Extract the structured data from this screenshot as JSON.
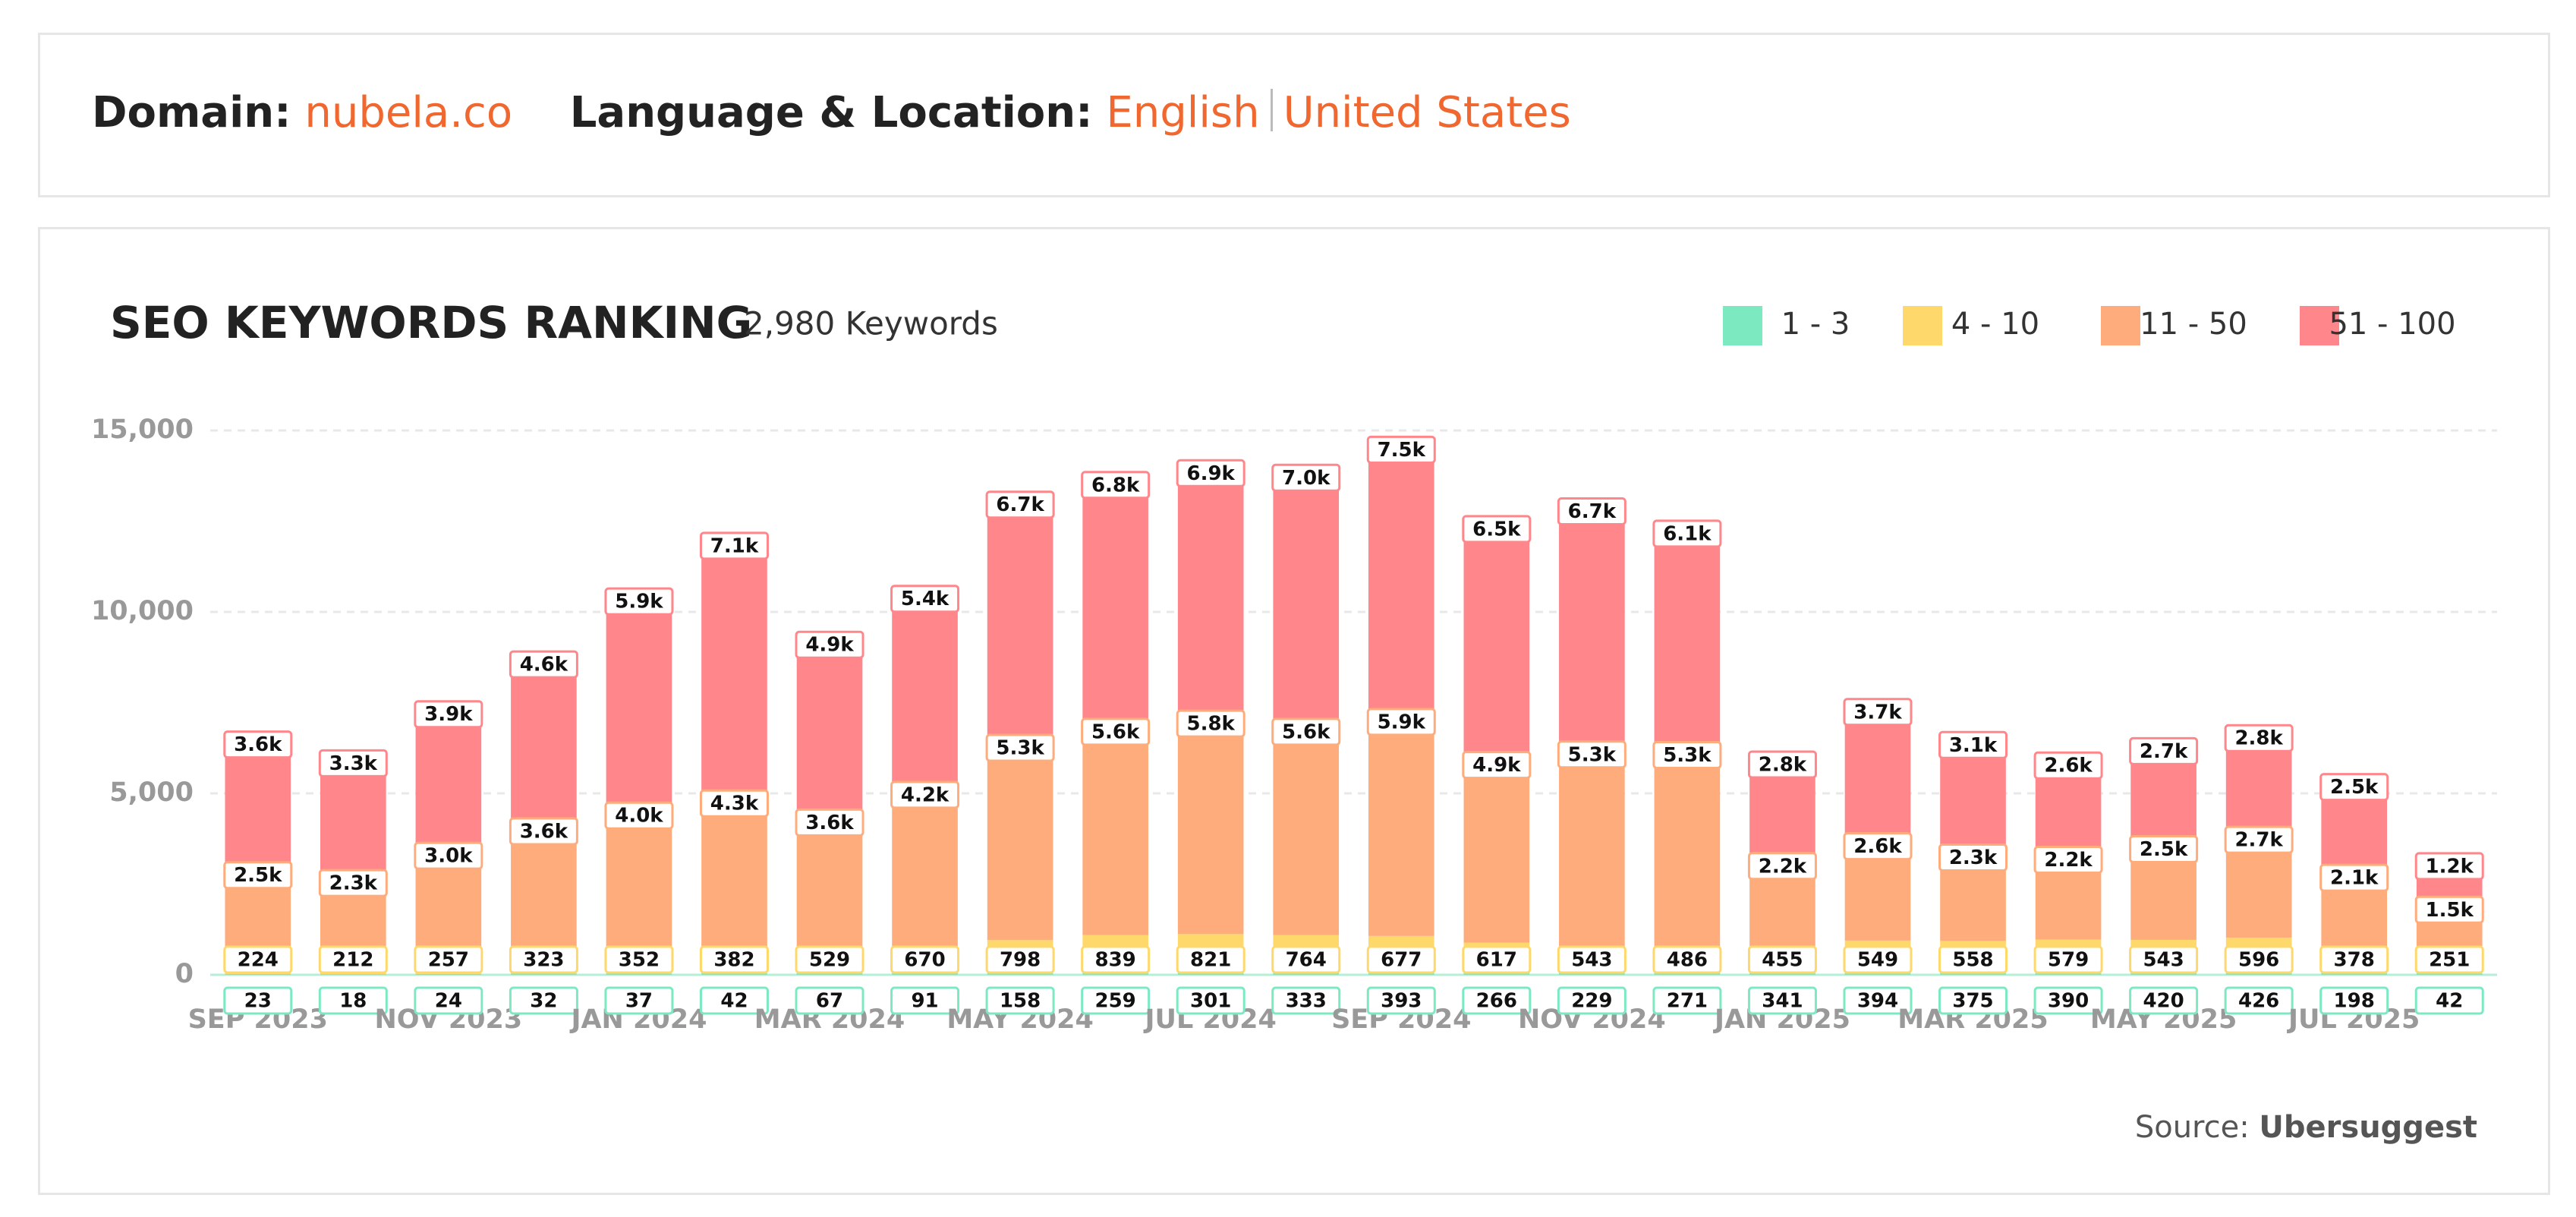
{
  "header": {
    "domain_label": "Domain:",
    "domain": "nubela.co",
    "location_label": "Language & Location:",
    "language": "English",
    "location": "United States"
  },
  "chart_data": {
    "type": "stacked_bar",
    "title": "SEO KEYWORDS RANKING",
    "subtitle": "2,980 Keywords",
    "categories": [
      "SEP 2023",
      null,
      "NOV 2023",
      null,
      "JAN 2024",
      null,
      "MAR 2024",
      null,
      "MAY 2024",
      null,
      "JUL 2024",
      null,
      "SEP 2024",
      null,
      "NOV 2024",
      null,
      "JAN 2025",
      null,
      "MAR 2025",
      null,
      "MAY 2025",
      null,
      "JUL 2025",
      null
    ],
    "series": [
      {
        "name": "1 - 3",
        "color": "#7de9c1",
        "values": [
          23,
          18,
          24,
          32,
          37,
          42,
          67,
          91,
          158,
          259,
          301,
          333,
          393,
          266,
          229,
          271,
          341,
          394,
          375,
          390,
          420,
          426,
          198,
          42
        ]
      },
      {
        "name": "4 - 10",
        "color": "#ffd86c",
        "values": [
          224,
          212,
          257,
          323,
          352,
          382,
          529,
          670,
          798,
          839,
          821,
          764,
          677,
          617,
          543,
          486,
          455,
          549,
          558,
          579,
          543,
          596,
          378,
          251
        ]
      },
      {
        "name": "11 - 50",
        "color": "#ffac7c",
        "values": [
          2500,
          2300,
          3000,
          3600,
          4000,
          4300,
          3600,
          4200,
          5300,
          5600,
          5800,
          5600,
          5900,
          4900,
          5300,
          5300,
          2200,
          2600,
          2300,
          2200,
          2500,
          2700,
          2100,
          1500
        ],
        "value_labels": [
          "2.5k",
          "2.3k",
          "3.0k",
          "3.6k",
          "4.0k",
          "4.3k",
          "3.6k",
          "4.2k",
          "5.3k",
          "5.6k",
          "5.8k",
          "5.6k",
          "5.9k",
          "4.9k",
          "5.3k",
          "5.3k",
          "2.2k",
          "2.6k",
          "2.3k",
          "2.2k",
          "2.5k",
          "2.7k",
          "2.1k",
          "1.5k"
        ]
      },
      {
        "name": "51 - 100",
        "color": "#ff878b",
        "values": [
          3600,
          3300,
          3900,
          4600,
          5900,
          7100,
          4900,
          5400,
          6700,
          6800,
          6900,
          7000,
          7500,
          6500,
          6700,
          6100,
          2800,
          3700,
          3100,
          2600,
          2700,
          2800,
          2500,
          1200
        ],
        "value_labels": [
          "3.6k",
          "3.3k",
          "3.9k",
          "4.6k",
          "5.9k",
          "7.1k",
          "4.9k",
          "5.4k",
          "6.7k",
          "6.8k",
          "6.9k",
          "7.0k",
          "7.5k",
          "6.5k",
          "6.7k",
          "6.1k",
          "2.8k",
          "3.7k",
          "3.1k",
          "2.6k",
          "2.7k",
          "2.8k",
          "2.5k",
          "1.2k"
        ]
      }
    ],
    "ylim": [
      0,
      15000
    ],
    "yticks": [
      0,
      {
        "value": 5000,
        "label": "5,000"
      },
      {
        "value": 10000,
        "label": "10,000"
      },
      {
        "value": 15000,
        "label": "15,000"
      }
    ],
    "grid": true,
    "legend": "top-right",
    "source_label": "Source:",
    "source": "Ubersuggest"
  }
}
